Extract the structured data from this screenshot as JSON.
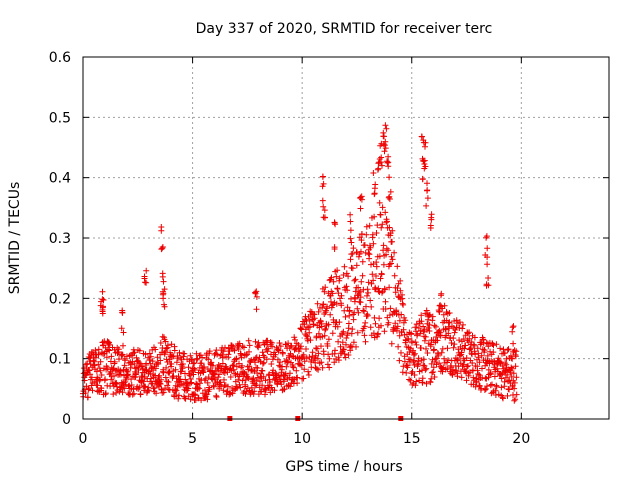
{
  "chart_data": {
    "type": "scatter",
    "title": "Day 337 of 2020, SRMTID for receiver terc",
    "xlabel": "GPS time / hours",
    "ylabel": "SRMTID / TECUs",
    "xlim": [
      0,
      24
    ],
    "ylim": [
      0,
      0.6
    ],
    "x_ticks": [
      0,
      5,
      10,
      15,
      20
    ],
    "x_tick_labels": [
      "0",
      "5",
      "10",
      "15",
      "20"
    ],
    "y_ticks": [
      0,
      0.1,
      0.2,
      0.3,
      0.4,
      0.5,
      0.6
    ],
    "y_tick_labels": [
      "0",
      "0.1",
      "0.2",
      "0.3",
      "0.4",
      "0.5",
      "0.6"
    ],
    "grid": true,
    "marker": "plus",
    "color": "#ee0000",
    "gap_markers_x": [
      6.7,
      9.8,
      14.5
    ],
    "envelope": [
      {
        "x": 0.0,
        "low": 0.03,
        "high": 0.1
      },
      {
        "x": 0.5,
        "low": 0.04,
        "high": 0.12
      },
      {
        "x": 1.0,
        "low": 0.04,
        "high": 0.13
      },
      {
        "x": 2.0,
        "low": 0.04,
        "high": 0.12
      },
      {
        "x": 3.0,
        "low": 0.04,
        "high": 0.11
      },
      {
        "x": 3.7,
        "low": 0.04,
        "high": 0.14
      },
      {
        "x": 4.5,
        "low": 0.03,
        "high": 0.11
      },
      {
        "x": 5.5,
        "low": 0.03,
        "high": 0.11
      },
      {
        "x": 6.5,
        "low": 0.04,
        "high": 0.12
      },
      {
        "x": 7.5,
        "low": 0.04,
        "high": 0.13
      },
      {
        "x": 8.5,
        "low": 0.04,
        "high": 0.13
      },
      {
        "x": 9.5,
        "low": 0.05,
        "high": 0.13
      },
      {
        "x": 10.3,
        "low": 0.07,
        "high": 0.18
      },
      {
        "x": 11.0,
        "low": 0.08,
        "high": 0.22
      },
      {
        "x": 12.0,
        "low": 0.1,
        "high": 0.27
      },
      {
        "x": 13.0,
        "low": 0.13,
        "high": 0.33
      },
      {
        "x": 13.8,
        "low": 0.14,
        "high": 0.38
      },
      {
        "x": 14.4,
        "low": 0.1,
        "high": 0.25
      },
      {
        "x": 14.8,
        "low": 0.05,
        "high": 0.14
      },
      {
        "x": 15.5,
        "low": 0.05,
        "high": 0.18
      },
      {
        "x": 16.5,
        "low": 0.08,
        "high": 0.2
      },
      {
        "x": 17.5,
        "low": 0.06,
        "high": 0.15
      },
      {
        "x": 18.5,
        "low": 0.04,
        "high": 0.13
      },
      {
        "x": 19.5,
        "low": 0.03,
        "high": 0.12
      }
    ],
    "spikes": [
      [
        0.9,
        0.22
      ],
      [
        0.85,
        0.2
      ],
      [
        1.8,
        0.18
      ],
      [
        2.85,
        0.26
      ],
      [
        3.6,
        0.33
      ],
      [
        3.65,
        0.25
      ],
      [
        3.7,
        0.23
      ],
      [
        7.9,
        0.23
      ],
      [
        10.95,
        0.41
      ],
      [
        11.0,
        0.38
      ],
      [
        11.5,
        0.33
      ],
      [
        12.2,
        0.34
      ],
      [
        12.7,
        0.37
      ],
      [
        13.3,
        0.42
      ],
      [
        13.5,
        0.44
      ],
      [
        13.6,
        0.46
      ],
      [
        13.75,
        0.5
      ],
      [
        13.8,
        0.49
      ],
      [
        13.9,
        0.45
      ],
      [
        14.0,
        0.41
      ],
      [
        15.5,
        0.47
      ],
      [
        15.6,
        0.46
      ],
      [
        15.55,
        0.43
      ],
      [
        15.7,
        0.4
      ],
      [
        15.9,
        0.34
      ],
      [
        16.3,
        0.22
      ],
      [
        18.4,
        0.31
      ],
      [
        18.45,
        0.27
      ],
      [
        19.6,
        0.16
      ]
    ],
    "end_hour": 19.8
  }
}
